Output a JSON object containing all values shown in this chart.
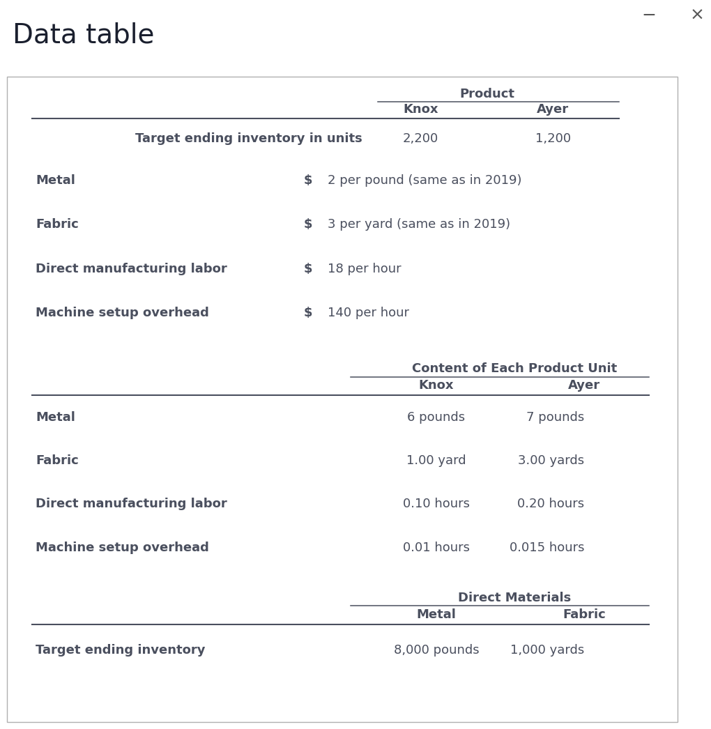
{
  "title": "Data table",
  "window_controls": [
    "−",
    "×"
  ],
  "bg_color": "#ffffff",
  "box_border_color": "#b0b0b0",
  "text_color": "#4a4f5e",
  "title_color": "#1a1a2e",
  "section1_header": "Product",
  "section1_cols": [
    "Knox",
    "Ayer"
  ],
  "section1_row_label": "Target ending inventory in units",
  "section1_values": [
    "2,200",
    "1,200"
  ],
  "section2_rows": [
    {
      "label": "Metal",
      "dollar": "$",
      "value": "2 per pound (same as in 2019)"
    },
    {
      "label": "Fabric",
      "dollar": "$",
      "value": "3 per yard (same as in 2019)"
    },
    {
      "label": "Direct manufacturing labor",
      "dollar": "$",
      "value": "18 per hour"
    },
    {
      "label": "Machine setup overhead",
      "dollar": "$",
      "value": "140 per hour"
    }
  ],
  "section3_header": "Content of Each Product Unit",
  "section3_cols": [
    "Knox",
    "Ayer"
  ],
  "section3_rows": [
    {
      "label": "Metal",
      "knox": "6 pounds",
      "ayer": "7 pounds"
    },
    {
      "label": "Fabric",
      "knox": "1.00 yard",
      "ayer": "3.00 yards"
    },
    {
      "label": "Direct manufacturing labor",
      "knox": "0.10 hours",
      "ayer": "0.20 hours"
    },
    {
      "label": "Machine setup overhead",
      "knox": "0.01 hours",
      "ayer": "0.015 hours"
    }
  ],
  "section4_header": "Direct Materials",
  "section4_cols": [
    "Metal",
    "Fabric"
  ],
  "section4_row_label": "Target ending inventory",
  "section4_values": [
    "8,000 pounds",
    "1,000 yards"
  ]
}
